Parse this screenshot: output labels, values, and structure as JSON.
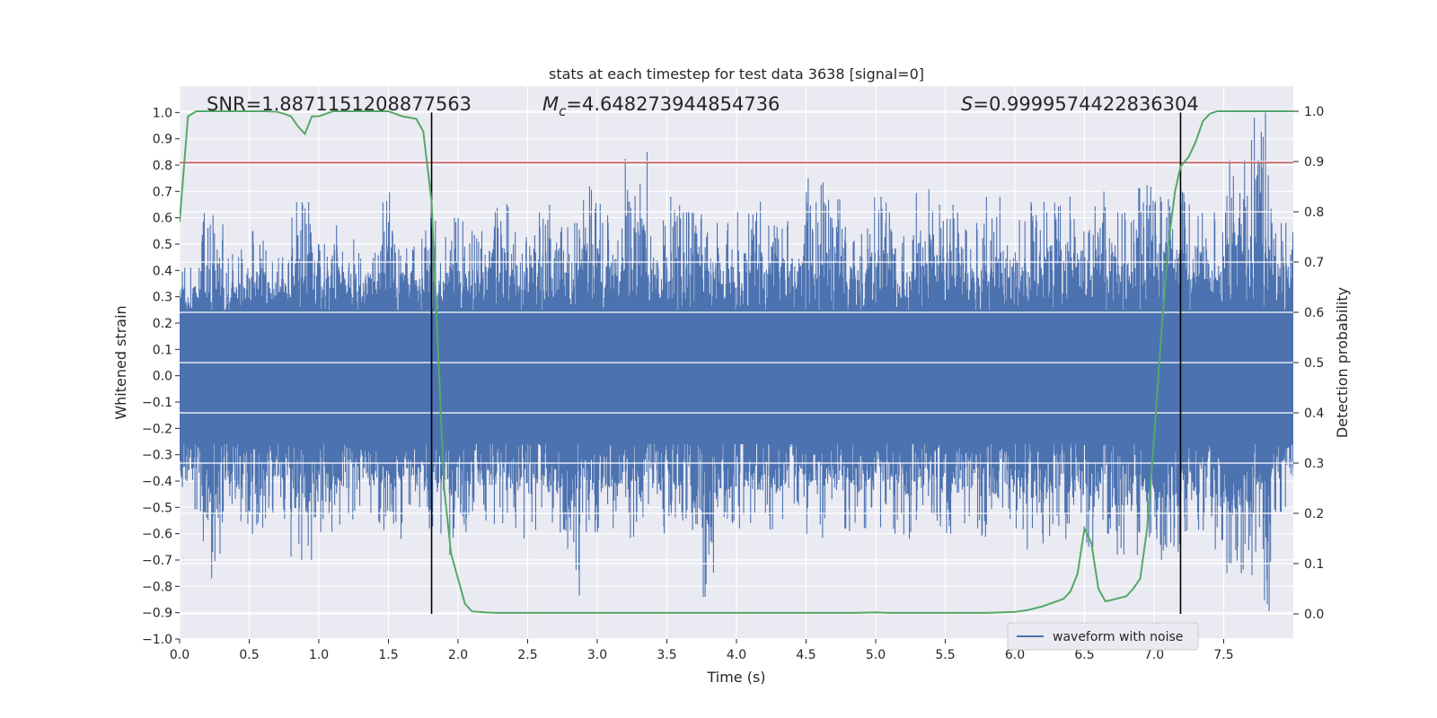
{
  "chart_data": {
    "type": "line",
    "title": "stats at each timestep for test data 3638 [signal=0]",
    "xlabel": "Time (s)",
    "ylabel_left": "Whitened strain",
    "ylabel_right": "Detection probability",
    "xlim": [
      0,
      8.0
    ],
    "ylim_left": [
      -1.0,
      1.1
    ],
    "ylim_right": [
      -0.05,
      1.05
    ],
    "x_ticks": [
      0.0,
      0.5,
      1.0,
      1.5,
      2.0,
      2.5,
      3.0,
      3.5,
      4.0,
      4.5,
      5.0,
      5.5,
      6.0,
      6.5,
      7.0,
      7.5
    ],
    "x_tick_labels": [
      "0.0",
      "0.5",
      "1.0",
      "1.5",
      "2.0",
      "2.5",
      "3.0",
      "3.5",
      "4.0",
      "4.5",
      "5.0",
      "5.5",
      "6.0",
      "6.5",
      "7.0",
      "7.5"
    ],
    "y_ticks_left": [
      -1.0,
      -0.9,
      -0.8,
      -0.7,
      -0.6,
      -0.5,
      -0.4,
      -0.3,
      -0.2,
      -0.1,
      0.0,
      0.1,
      0.2,
      0.3,
      0.4,
      0.5,
      0.6,
      0.7,
      0.8,
      0.9,
      1.0
    ],
    "y_tick_labels_left": [
      "−1.0",
      "−0.9",
      "−0.8",
      "−0.7",
      "−0.6",
      "−0.5",
      "−0.4",
      "−0.3",
      "−0.2",
      "−0.1",
      "0.0",
      "0.1",
      "0.2",
      "0.3",
      "0.4",
      "0.5",
      "0.6",
      "0.7",
      "0.8",
      "0.9",
      "1.0"
    ],
    "y_ticks_right": [
      0.0,
      0.1,
      0.2,
      0.3,
      0.4,
      0.5,
      0.6,
      0.7,
      0.8,
      0.9,
      1.0
    ],
    "y_tick_labels_right": [
      "0.0",
      "0.1",
      "0.2",
      "0.3",
      "0.4",
      "0.5",
      "0.6",
      "0.7",
      "0.8",
      "0.9",
      "1.0"
    ],
    "annotations": {
      "snr_label": "SNR=1.8871151208877563",
      "mc_symbol": "M",
      "mc_subscript": "c",
      "mc_value": "=4.648273944854736",
      "s_symbol": "S",
      "s_value": "=0.9999574422836304"
    },
    "threshold_line": {
      "y": 0.81,
      "color": "#c44e52"
    },
    "vertical_lines": [
      1.81,
      7.19
    ],
    "waveform": {
      "name": "waveform with noise",
      "color": "#4c72b0",
      "note": "dense whitened strain noise, approx. amplitude band",
      "envelope_upper": [
        0.42,
        0.62,
        0.48,
        0.55,
        0.45,
        0.66,
        0.5,
        0.58,
        0.47,
        0.7,
        0.52,
        0.6,
        0.63,
        0.55,
        0.68,
        0.57,
        0.65,
        0.58,
        0.72,
        0.62,
        0.85,
        0.6,
        0.68,
        0.62,
        0.58,
        0.65,
        0.7,
        0.6,
        0.75,
        0.67,
        0.62,
        0.68,
        0.58,
        0.72,
        0.65,
        0.58,
        0.68,
        0.6,
        0.66,
        0.73,
        0.65,
        0.7,
        0.62,
        0.75,
        0.68,
        0.7,
        0.62,
        0.82,
        1.0,
        0.58
      ],
      "envelope_lower": [
        -0.52,
        -0.77,
        -0.58,
        -0.62,
        -0.55,
        -0.7,
        -0.6,
        -0.58,
        -0.56,
        -0.62,
        -0.55,
        -0.6,
        -0.68,
        -0.55,
        -0.58,
        -0.62,
        -0.56,
        -0.84,
        -0.6,
        -0.58,
        -0.65,
        -0.6,
        -0.55,
        -0.84,
        -0.62,
        -0.58,
        -0.6,
        -0.56,
        -0.62,
        -0.58,
        -0.6,
        -0.58,
        -0.62,
        -0.57,
        -0.6,
        -0.58,
        -0.64,
        -0.6,
        -0.66,
        -0.62,
        -0.65,
        -0.6,
        -0.68,
        -0.62,
        -0.7,
        -0.62,
        -0.66,
        -0.75,
        -0.91,
        -0.52
      ]
    },
    "detection_probability": {
      "color": "#55a868",
      "x": [
        0.0,
        0.06,
        0.12,
        0.2,
        0.3,
        0.4,
        0.5,
        0.6,
        0.7,
        0.75,
        0.8,
        0.85,
        0.9,
        0.95,
        1.0,
        1.05,
        1.1,
        1.2,
        1.3,
        1.4,
        1.5,
        1.55,
        1.6,
        1.7,
        1.75,
        1.81,
        1.86,
        1.9,
        1.95,
        2.0,
        2.05,
        2.1,
        2.2,
        2.3,
        2.5,
        3.0,
        3.5,
        4.0,
        4.5,
        4.7,
        4.85,
        5.0,
        5.1,
        5.2,
        5.3,
        5.4,
        5.6,
        5.8,
        6.0,
        6.1,
        6.2,
        6.3,
        6.35,
        6.4,
        6.45,
        6.5,
        6.55,
        6.6,
        6.65,
        6.7,
        6.8,
        6.85,
        6.9,
        6.95,
        7.0,
        7.05,
        7.1,
        7.15,
        7.19,
        7.25,
        7.3,
        7.35,
        7.4,
        7.45,
        7.5,
        7.6,
        7.7,
        7.8,
        7.9,
        7.95,
        8.0
      ],
      "y": [
        0.78,
        0.99,
        1.0,
        1.0,
        1.0,
        1.0,
        1.0,
        1.0,
        0.999,
        0.995,
        0.99,
        0.97,
        0.955,
        0.99,
        0.99,
        0.995,
        1.0,
        1.0,
        1.0,
        1.0,
        1.0,
        0.995,
        0.99,
        0.985,
        0.96,
        0.82,
        0.5,
        0.25,
        0.12,
        0.07,
        0.02,
        0.005,
        0.003,
        0.002,
        0.002,
        0.002,
        0.002,
        0.002,
        0.002,
        0.002,
        0.002,
        0.003,
        0.002,
        0.002,
        0.002,
        0.002,
        0.002,
        0.002,
        0.004,
        0.008,
        0.015,
        0.025,
        0.03,
        0.045,
        0.08,
        0.17,
        0.14,
        0.05,
        0.025,
        0.028,
        0.035,
        0.05,
        0.07,
        0.17,
        0.35,
        0.55,
        0.73,
        0.84,
        0.89,
        0.91,
        0.94,
        0.98,
        0.995,
        1.0,
        1.0,
        1.0,
        1.0,
        1.0,
        1.0,
        1.0,
        1.0
      ]
    },
    "legend": {
      "placement": "lower-right",
      "label": "waveform with noise"
    },
    "grid": true
  }
}
